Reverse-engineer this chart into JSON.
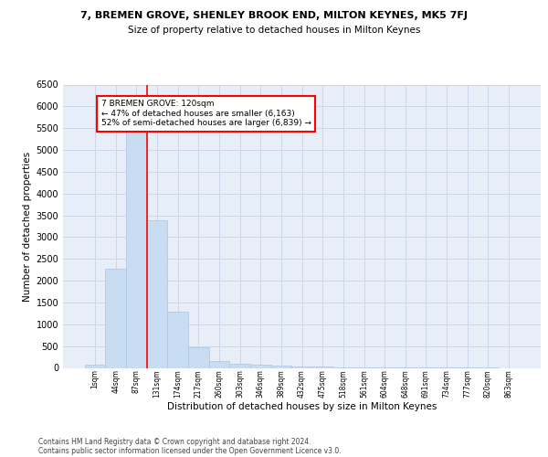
{
  "title_line1": "7, BREMEN GROVE, SHENLEY BROOK END, MILTON KEYNES, MK5 7FJ",
  "title_line2": "Size of property relative to detached houses in Milton Keynes",
  "xlabel": "Distribution of detached houses by size in Milton Keynes",
  "ylabel": "Number of detached properties",
  "footnote_line1": "Contains HM Land Registry data © Crown copyright and database right 2024.",
  "footnote_line2": "Contains public sector information licensed under the Open Government Licence v3.0.",
  "categories": [
    "1sqm",
    "44sqm",
    "87sqm",
    "131sqm",
    "174sqm",
    "217sqm",
    "260sqm",
    "303sqm",
    "346sqm",
    "389sqm",
    "432sqm",
    "475sqm",
    "518sqm",
    "561sqm",
    "604sqm",
    "648sqm",
    "691sqm",
    "734sqm",
    "777sqm",
    "820sqm",
    "863sqm"
  ],
  "values": [
    75,
    2280,
    5430,
    3380,
    1290,
    480,
    165,
    90,
    70,
    50,
    35,
    25,
    15,
    10,
    8,
    5,
    3,
    2,
    1,
    1,
    0
  ],
  "bar_color": "#c9ddf2",
  "bar_edge_color": "#aac4e0",
  "grid_color": "#ccd6e8",
  "background_color": "#e8eef8",
  "vline_color": "red",
  "vline_pos": 2.5,
  "annotation_text": "7 BREMEN GROVE: 120sqm\n← 47% of detached houses are smaller (6,163)\n52% of semi-detached houses are larger (6,839) →",
  "annotation_box_color": "white",
  "annotation_box_edge": "red",
  "ylim": [
    0,
    6500
  ],
  "yticks": [
    0,
    500,
    1000,
    1500,
    2000,
    2500,
    3000,
    3500,
    4000,
    4500,
    5000,
    5500,
    6000,
    6500
  ],
  "title1_fontsize": 8.0,
  "title2_fontsize": 7.5,
  "ylabel_fontsize": 7.5,
  "xlabel_fontsize": 7.5,
  "xtick_fontsize": 5.5,
  "ytick_fontsize": 7.0,
  "annot_fontsize": 6.5,
  "footnote_fontsize": 5.5
}
